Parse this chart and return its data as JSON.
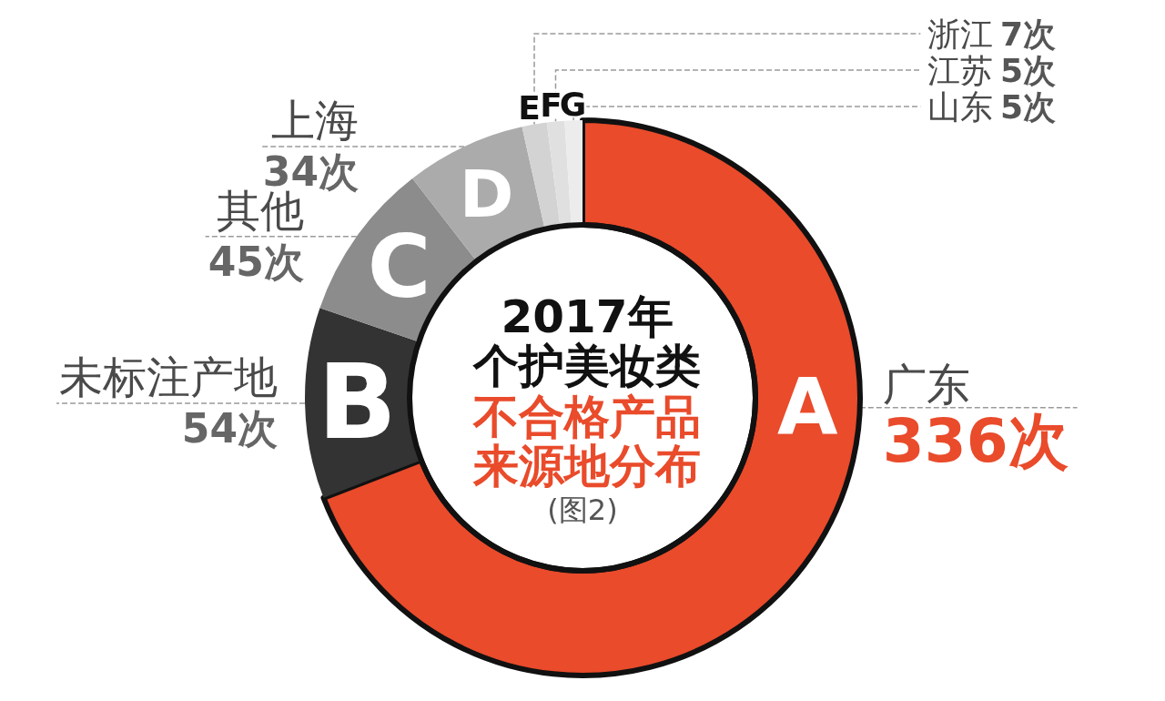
{
  "chart_data": {
    "type": "donut",
    "title": "2017年个护美妆类",
    "subtitle": "不合格产品来源地分布",
    "categories": [
      "广东",
      "未标注产地",
      "其他",
      "上海",
      "浙江",
      "江苏",
      "山东"
    ],
    "values": [
      336,
      54,
      45,
      34,
      7,
      5,
      5
    ],
    "colors": [
      "#e94b2b",
      "#333333",
      "#8c8c8c",
      "#ababab",
      "#d3d3d3",
      "#e0e0e0",
      "#ececec"
    ],
    "value_labels": [
      "336次",
      "54次",
      "45次",
      "34次",
      "7次",
      "5次",
      "5次"
    ],
    "annotations": [
      {
        "text": "A",
        "x": "广东"
      },
      {
        "text": "B",
        "x": "未标注产地"
      },
      {
        "text": "C",
        "x": "其他"
      },
      {
        "text": "D",
        "x": "上海"
      },
      {
        "text": "E",
        "x": "浙江"
      },
      {
        "text": "F",
        "x": "江苏"
      },
      {
        "text": "G",
        "x": "山东"
      },
      "(图2)"
    ]
  }
}
